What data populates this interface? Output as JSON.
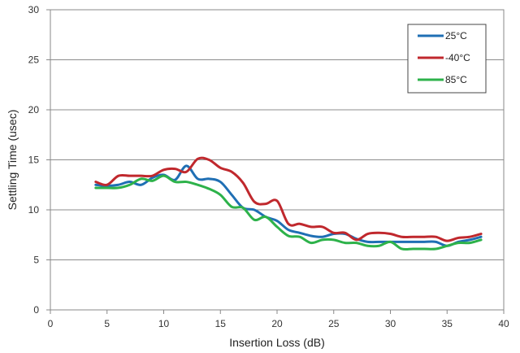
{
  "chart_data": {
    "type": "line",
    "title": "",
    "xlabel": "Insertion Loss (dB)",
    "ylabel": "Settling Time (usec)",
    "xlim": [
      0,
      40
    ],
    "ylim": [
      0,
      30
    ],
    "xticks": [
      0,
      5,
      10,
      15,
      20,
      25,
      30,
      35,
      40
    ],
    "yticks": [
      0,
      5,
      10,
      15,
      20,
      25,
      30
    ],
    "grid": "horizontal",
    "legend_position": "top-right",
    "series": [
      {
        "name": "25°C",
        "color": "#1f6fb4",
        "x": [
          4,
          5,
          6,
          7,
          8,
          9,
          10,
          11,
          12,
          13,
          14,
          15,
          16,
          17,
          18,
          19,
          20,
          21,
          22,
          23,
          24,
          25,
          26,
          27,
          28,
          29,
          30,
          31,
          32,
          33,
          34,
          35,
          36,
          37,
          38
        ],
        "y": [
          12.5,
          12.4,
          12.5,
          12.8,
          12.5,
          13.2,
          13.5,
          13.0,
          14.4,
          13.1,
          13.1,
          12.8,
          11.5,
          10.2,
          10.0,
          9.3,
          8.9,
          8.0,
          7.7,
          7.4,
          7.3,
          7.6,
          7.6,
          7.1,
          6.8,
          6.8,
          6.8,
          6.8,
          6.8,
          6.8,
          6.8,
          6.4,
          6.8,
          7.0,
          7.3
        ]
      },
      {
        "name": "-40°C",
        "color": "#c0282d",
        "x": [
          4,
          5,
          6,
          7,
          8,
          9,
          10,
          11,
          12,
          13,
          14,
          15,
          16,
          17,
          18,
          19,
          20,
          21,
          22,
          23,
          24,
          25,
          26,
          27,
          28,
          29,
          30,
          31,
          32,
          33,
          34,
          35,
          36,
          37,
          38
        ],
        "y": [
          12.8,
          12.5,
          13.4,
          13.4,
          13.4,
          13.4,
          14.0,
          14.1,
          13.8,
          15.1,
          15.0,
          14.2,
          13.8,
          12.7,
          10.8,
          10.6,
          10.9,
          8.6,
          8.6,
          8.3,
          8.3,
          7.7,
          7.7,
          7.0,
          7.6,
          7.7,
          7.6,
          7.3,
          7.3,
          7.3,
          7.3,
          6.9,
          7.2,
          7.3,
          7.6
        ]
      },
      {
        "name": "85°C",
        "color": "#2db24a",
        "x": [
          4,
          5,
          6,
          7,
          8,
          9,
          10,
          11,
          12,
          13,
          14,
          15,
          16,
          17,
          18,
          19,
          20,
          21,
          22,
          23,
          24,
          25,
          26,
          27,
          28,
          29,
          30,
          31,
          32,
          33,
          34,
          35,
          36,
          37,
          38
        ],
        "y": [
          12.2,
          12.2,
          12.2,
          12.5,
          13.1,
          12.9,
          13.4,
          12.8,
          12.8,
          12.5,
          12.1,
          11.5,
          10.3,
          10.2,
          9.0,
          9.3,
          8.3,
          7.4,
          7.3,
          6.7,
          7.0,
          7.0,
          6.7,
          6.7,
          6.4,
          6.4,
          6.8,
          6.1,
          6.1,
          6.1,
          6.1,
          6.4,
          6.7,
          6.7,
          7.0
        ]
      }
    ]
  }
}
